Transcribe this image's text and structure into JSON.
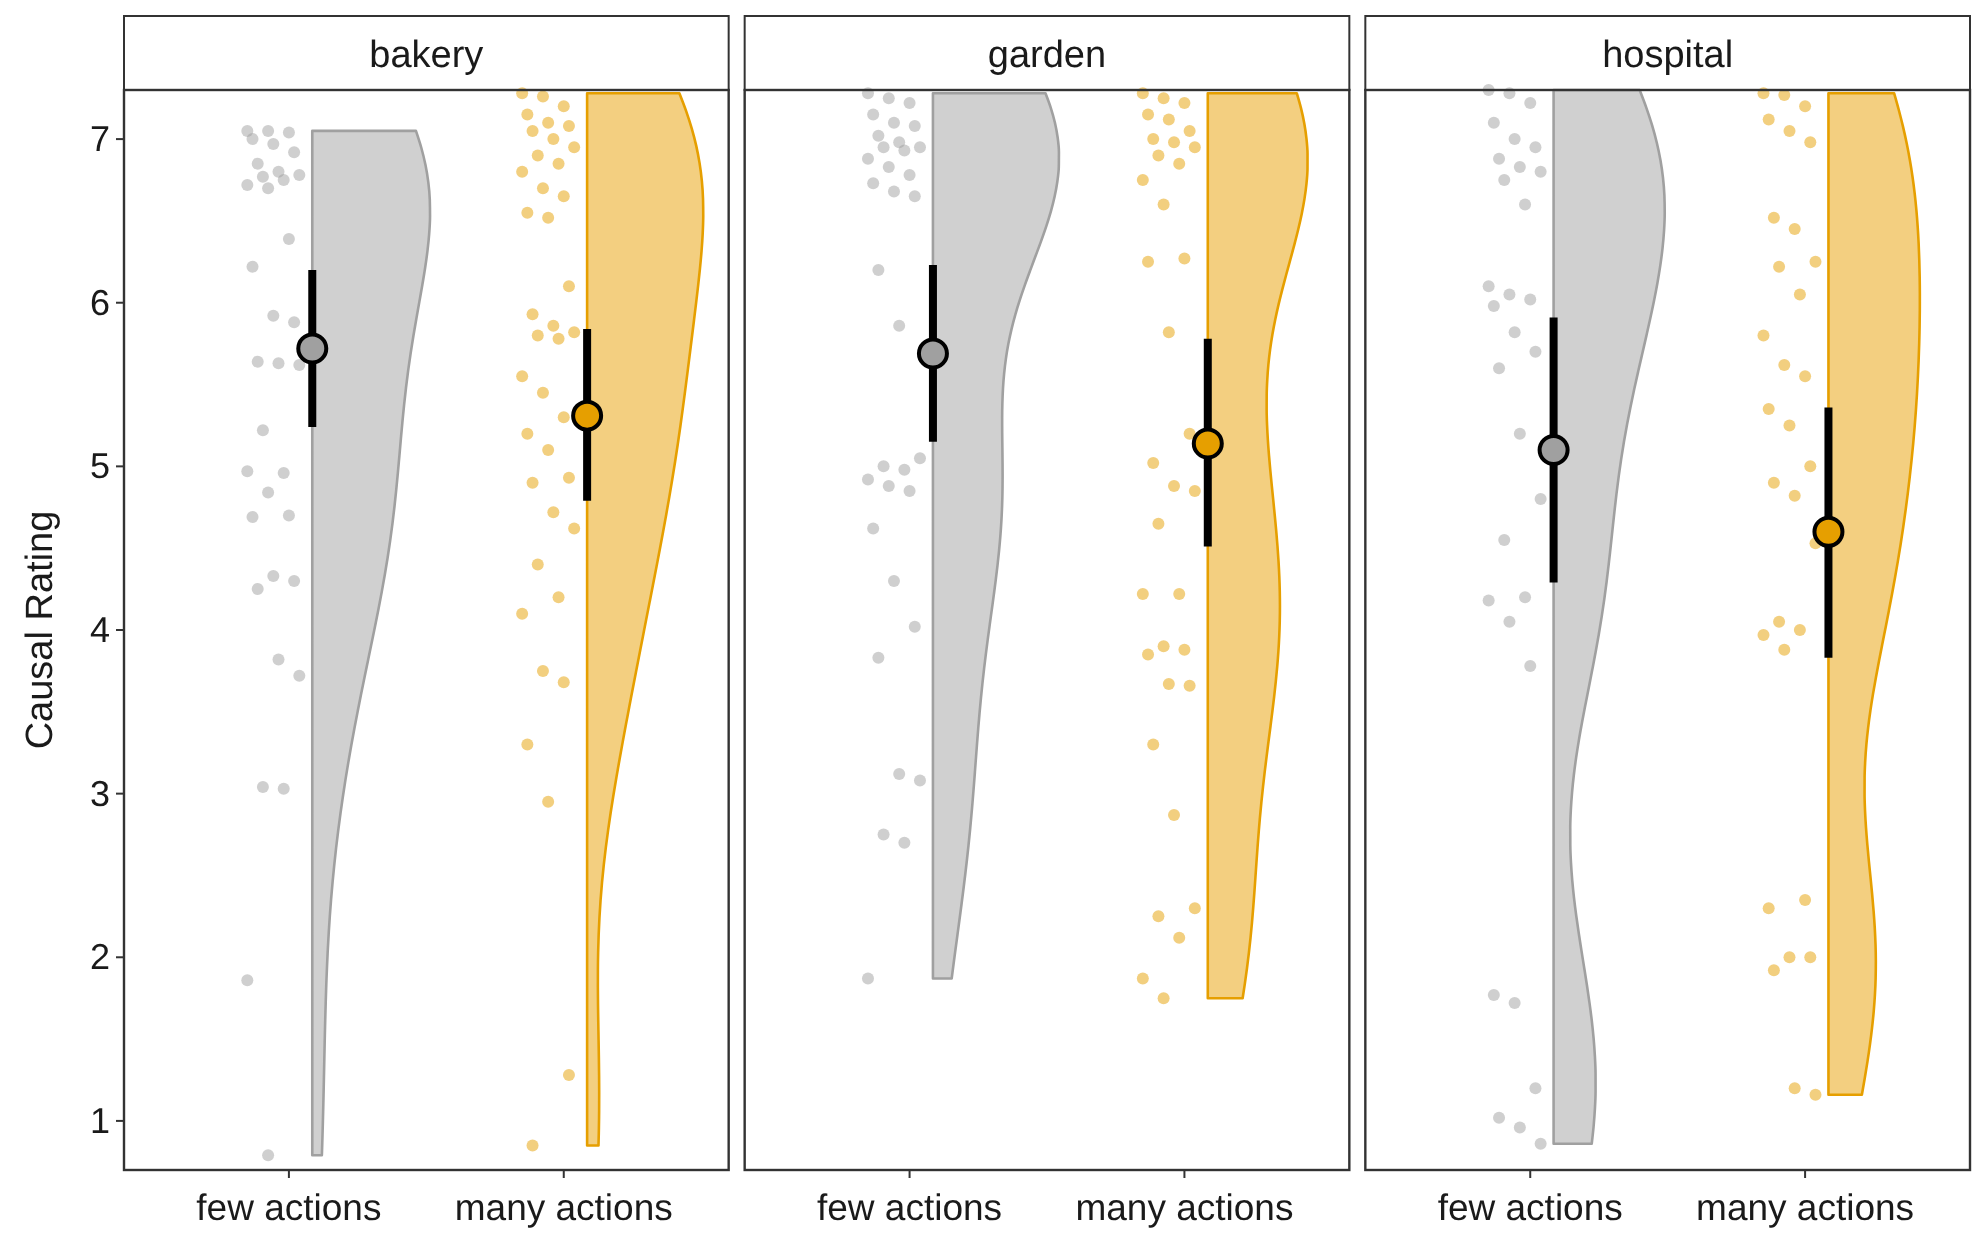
{
  "chart_data": [
    {
      "type": "scatter",
      "title": "bakery",
      "ylabel": "Causal Rating",
      "categories": [
        "few actions",
        "many actions"
      ],
      "ylim": [
        0.7,
        7.3
      ],
      "yticks": [
        1,
        2,
        3,
        4,
        5,
        6,
        7
      ],
      "grid": false,
      "legend": false,
      "series": [
        {
          "type": "scatter",
          "color": "#a0a0a0",
          "x": [
            "few actions",
            "few actions",
            "few actions",
            "few actions",
            "few actions",
            "few actions",
            "few actions",
            "few actions",
            "few actions",
            "few actions",
            "few actions",
            "few actions",
            "few actions",
            "few actions",
            "few actions",
            "few actions",
            "few actions",
            "few actions",
            "few actions",
            "few actions",
            "few actions",
            "few actions",
            "few actions",
            "few actions",
            "few actions",
            "few actions",
            "few actions",
            "few actions",
            "few actions",
            "few actions",
            "few actions",
            "few actions",
            "few actions",
            "few actions",
            "few actions"
          ],
          "values": [
            7.05,
            7.05,
            7.04,
            7.0,
            6.97,
            6.92,
            6.85,
            6.8,
            6.78,
            6.77,
            6.75,
            6.72,
            6.7,
            6.39,
            6.22,
            5.92,
            5.88,
            5.64,
            5.63,
            5.62,
            5.22,
            4.96,
            4.97,
            4.84,
            4.7,
            4.69,
            4.33,
            4.3,
            4.25,
            3.82,
            3.72,
            3.04,
            3.03,
            1.86,
            0.79
          ]
        },
        {
          "type": "scatter",
          "color": "#e69f00",
          "x": [
            "many actions",
            "many actions",
            "many actions",
            "many actions",
            "many actions",
            "many actions",
            "many actions",
            "many actions",
            "many actions",
            "many actions",
            "many actions",
            "many actions",
            "many actions",
            "many actions",
            "many actions",
            "many actions",
            "many actions",
            "many actions",
            "many actions",
            "many actions",
            "many actions",
            "many actions",
            "many actions",
            "many actions",
            "many actions",
            "many actions",
            "many actions",
            "many actions",
            "many actions",
            "many actions",
            "many actions",
            "many actions",
            "many actions",
            "many actions",
            "many actions",
            "many actions",
            "many actions",
            "many actions",
            "many actions",
            "many actions"
          ],
          "values": [
            7.28,
            7.26,
            7.2,
            7.15,
            7.1,
            7.08,
            7.05,
            7.0,
            6.95,
            6.9,
            6.85,
            6.8,
            6.7,
            6.65,
            6.55,
            6.52,
            6.1,
            5.93,
            5.86,
            5.82,
            5.8,
            5.78,
            5.55,
            5.45,
            5.3,
            5.2,
            5.1,
            4.93,
            4.9,
            4.72,
            4.62,
            4.4,
            4.2,
            4.1,
            3.75,
            3.68,
            3.3,
            2.95,
            1.28,
            0.85
          ]
        },
        {
          "type": "scatter",
          "marker": "circle",
          "x": [
            "few actions",
            "many actions"
          ],
          "values": [
            5.72,
            5.31
          ],
          "colors": [
            "#a0a0a0",
            "#e69f00"
          ],
          "errors": [
            [
              5.24,
              6.2
            ],
            [
              4.79,
              5.84
            ]
          ]
        }
      ]
    },
    {
      "type": "scatter",
      "title": "garden",
      "categories": [
        "few actions",
        "many actions"
      ],
      "ylim": [
        0.7,
        7.3
      ],
      "yticks": [
        1,
        2,
        3,
        4,
        5,
        6,
        7
      ],
      "tick_labels": "x",
      "grid": false,
      "legend": false,
      "series": [
        {
          "type": "scatter",
          "color": "#a0a0a0",
          "x": [
            "few actions",
            "few actions",
            "few actions",
            "few actions",
            "few actions",
            "few actions",
            "few actions",
            "few actions",
            "few actions",
            "few actions",
            "few actions",
            "few actions",
            "few actions",
            "few actions",
            "few actions",
            "few actions",
            "few actions",
            "few actions",
            "few actions",
            "few actions",
            "few actions",
            "few actions",
            "few actions",
            "few actions",
            "few actions",
            "few actions",
            "few actions",
            "few actions",
            "few actions",
            "few actions",
            "few actions",
            "few actions",
            "few actions",
            "few actions"
          ],
          "values": [
            7.28,
            7.25,
            7.22,
            7.15,
            7.1,
            7.08,
            7.02,
            6.98,
            6.95,
            6.95,
            6.93,
            6.88,
            6.83,
            6.78,
            6.73,
            6.68,
            6.65,
            6.2,
            5.86,
            5.05,
            5.0,
            4.98,
            4.92,
            4.88,
            4.85,
            4.62,
            4.3,
            4.02,
            3.83,
            3.12,
            3.08,
            2.75,
            2.7,
            1.87
          ]
        },
        {
          "type": "scatter",
          "color": "#e69f00",
          "x": [
            "many actions",
            "many actions",
            "many actions",
            "many actions",
            "many actions",
            "many actions",
            "many actions",
            "many actions",
            "many actions",
            "many actions",
            "many actions",
            "many actions",
            "many actions",
            "many actions",
            "many actions",
            "many actions",
            "many actions",
            "many actions",
            "many actions",
            "many actions",
            "many actions",
            "many actions",
            "many actions",
            "many actions",
            "many actions",
            "many actions",
            "many actions",
            "many actions",
            "many actions",
            "many actions",
            "many actions",
            "many actions",
            "many actions",
            "many actions",
            "many actions"
          ],
          "values": [
            7.28,
            7.25,
            7.22,
            7.15,
            7.12,
            7.05,
            7.0,
            6.98,
            6.95,
            6.9,
            6.85,
            6.75,
            6.6,
            6.27,
            6.25,
            5.82,
            5.2,
            5.02,
            4.88,
            4.85,
            4.65,
            4.22,
            4.22,
            3.9,
            3.88,
            3.85,
            3.67,
            3.66,
            3.3,
            2.87,
            2.3,
            2.25,
            2.12,
            1.87,
            1.75
          ]
        },
        {
          "type": "scatter",
          "marker": "circle",
          "x": [
            "few actions",
            "many actions"
          ],
          "values": [
            5.69,
            5.14
          ],
          "colors": [
            "#a0a0a0",
            "#e69f00"
          ],
          "errors": [
            [
              5.15,
              6.23
            ],
            [
              4.51,
              5.78
            ]
          ]
        }
      ]
    },
    {
      "type": "scatter",
      "title": "hospital",
      "categories": [
        "few actions",
        "many actions"
      ],
      "ylim": [
        0.7,
        7.3
      ],
      "yticks": [
        1,
        2,
        3,
        4,
        5,
        6,
        7
      ],
      "tick_labels": "x",
      "grid": false,
      "legend": false,
      "series": [
        {
          "type": "scatter",
          "color": "#a0a0a0",
          "x": [
            "few actions",
            "few actions",
            "few actions",
            "few actions",
            "few actions",
            "few actions",
            "few actions",
            "few actions",
            "few actions",
            "few actions",
            "few actions",
            "few actions",
            "few actions",
            "few actions",
            "few actions",
            "few actions",
            "few actions",
            "few actions",
            "few actions",
            "few actions",
            "few actions",
            "few actions",
            "few actions",
            "few actions",
            "few actions",
            "few actions",
            "few actions",
            "few actions",
            "few actions",
            "few actions",
            "few actions"
          ],
          "values": [
            7.3,
            7.28,
            7.22,
            7.1,
            7.0,
            6.95,
            6.88,
            6.83,
            6.8,
            6.75,
            6.6,
            6.1,
            6.05,
            6.02,
            5.98,
            5.82,
            5.7,
            5.6,
            5.2,
            4.8,
            4.55,
            4.2,
            4.18,
            4.05,
            3.78,
            1.77,
            1.72,
            1.2,
            1.02,
            0.96,
            0.86
          ]
        },
        {
          "type": "scatter",
          "color": "#e69f00",
          "x": [
            "many actions",
            "many actions",
            "many actions",
            "many actions",
            "many actions",
            "many actions",
            "many actions",
            "many actions",
            "many actions",
            "many actions",
            "many actions",
            "many actions",
            "many actions",
            "many actions",
            "many actions",
            "many actions",
            "many actions",
            "many actions",
            "many actions",
            "many actions",
            "many actions",
            "many actions",
            "many actions",
            "many actions",
            "many actions",
            "many actions",
            "many actions",
            "many actions",
            "many actions",
            "many actions",
            "many actions"
          ],
          "values": [
            7.28,
            7.27,
            7.2,
            7.12,
            7.05,
            6.98,
            6.52,
            6.45,
            6.25,
            6.22,
            6.05,
            5.8,
            5.62,
            5.55,
            5.35,
            5.25,
            5.0,
            4.9,
            4.82,
            4.53,
            4.05,
            4.0,
            3.97,
            3.88,
            2.35,
            2.3,
            2.0,
            2.0,
            1.92,
            1.2,
            1.16
          ]
        },
        {
          "type": "scatter",
          "marker": "circle",
          "x": [
            "few actions",
            "many actions"
          ],
          "values": [
            5.1,
            4.6
          ],
          "colors": [
            "#a0a0a0",
            "#e69f00"
          ],
          "errors": [
            [
              4.29,
              5.91
            ],
            [
              3.83,
              5.36
            ]
          ]
        }
      ]
    }
  ]
}
